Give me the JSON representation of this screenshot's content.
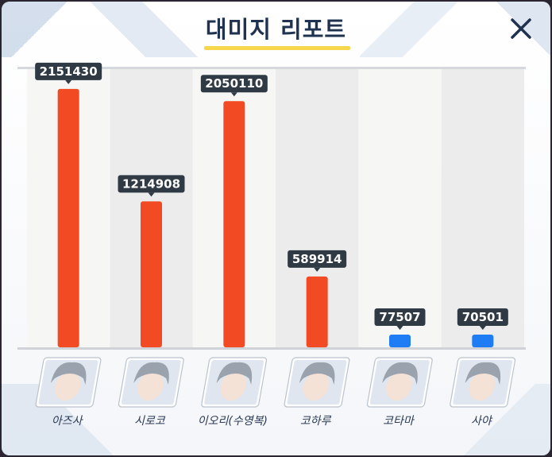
{
  "dialog": {
    "title": "대미지 리포트"
  },
  "colors": {
    "striker": "#f24a22",
    "special": "#1e7cf4",
    "title": "#1f3350",
    "accent": "#f6d64a"
  },
  "chart_data": {
    "type": "bar",
    "categories": [
      "아즈사",
      "시로코",
      "이오리(수영복)",
      "코하루",
      "코타마",
      "사야"
    ],
    "values": [
      2151430,
      1214908,
      2050110,
      589914,
      77507,
      70501
    ],
    "bar_colors": [
      "#f24a22",
      "#f24a22",
      "#f24a22",
      "#f24a22",
      "#1e7cf4",
      "#1e7cf4"
    ],
    "ylim": [
      0,
      2270000
    ],
    "grid": false,
    "legend": "none"
  }
}
